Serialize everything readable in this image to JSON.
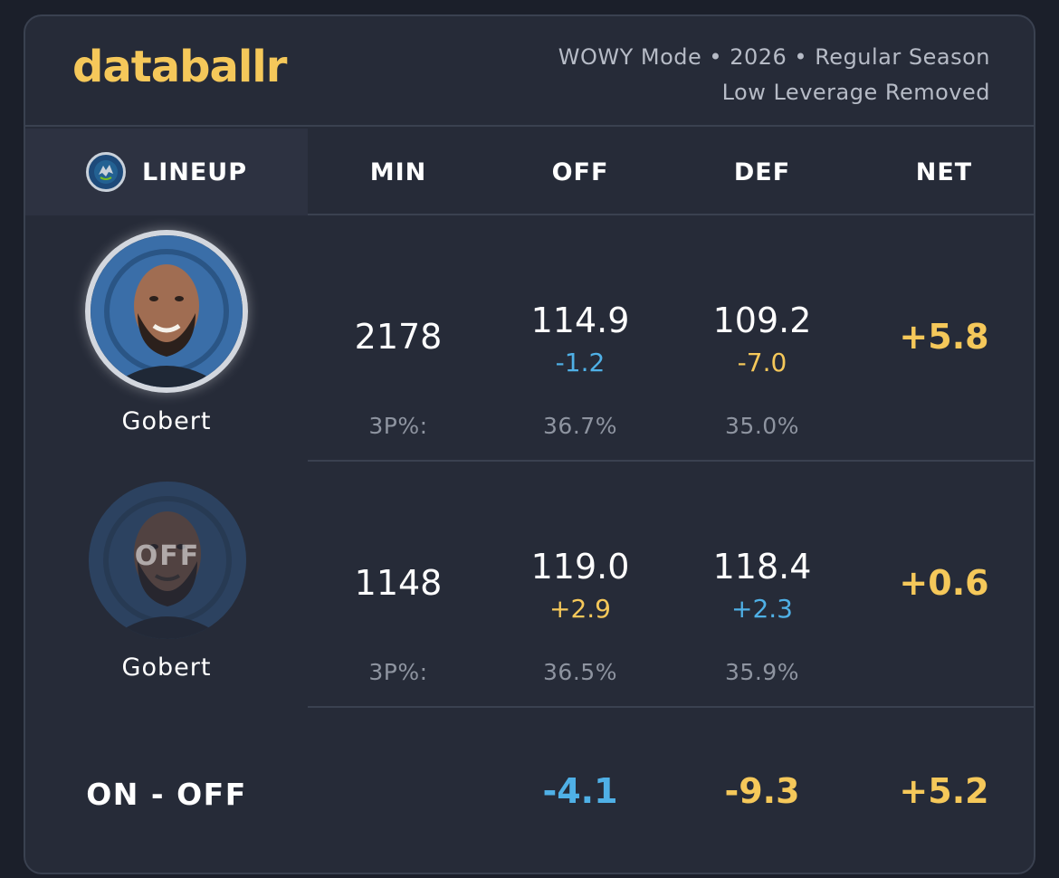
{
  "header": {
    "brand": "databallr",
    "info_line1": "WOWY Mode • 2026 • Regular Season",
    "info_line2": "Low Leverage Removed"
  },
  "columns": {
    "lineup": "LINEUP",
    "min": "MIN",
    "off": "OFF",
    "def": "DEF",
    "net": "NET"
  },
  "rows": [
    {
      "player": "Gobert",
      "status": "on",
      "min": "2178",
      "off": "114.9",
      "off_delta": "-1.2",
      "def": "109.2",
      "def_delta": "-7.0",
      "net": "+5.8",
      "pct_label": "3P%:",
      "off_3p": "36.7%",
      "def_3p": "35.0%"
    },
    {
      "player": "Gobert",
      "status": "off",
      "status_label": "OFF",
      "min": "1148",
      "off": "119.0",
      "off_delta": "+2.9",
      "def": "118.4",
      "def_delta": "+2.3",
      "net": "+0.6",
      "pct_label": "3P%:",
      "off_3p": "36.5%",
      "def_3p": "35.9%"
    }
  ],
  "on_off": {
    "label": "ON - OFF",
    "off": "-4.1",
    "def": "-9.3",
    "net": "+5.2"
  },
  "colors": {
    "accent": "#f5c85a",
    "blue": "#4fb0e6",
    "card": "#262b38",
    "background": "#1b1f2a"
  },
  "icons": {
    "team": "timberwolves-logo-icon"
  }
}
